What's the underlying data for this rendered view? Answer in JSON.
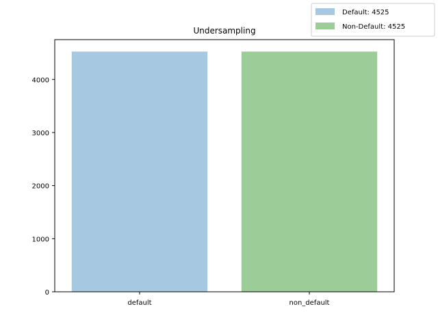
{
  "chart_data": {
    "type": "bar",
    "title": "Undersampling",
    "xlabel": "",
    "ylabel": "",
    "categories": [
      "default",
      "non_default"
    ],
    "values": [
      4525,
      4525
    ],
    "colors": [
      "#a6c8e0",
      "#9ccc98"
    ],
    "ylim": [
      0,
      4750
    ],
    "yticks": [
      0,
      1000,
      2000,
      3000,
      4000
    ],
    "grid": false,
    "legend": {
      "placement": "top-right outside axes",
      "entries": [
        {
          "label": "Default: 4525",
          "color": "#a6c8e0"
        },
        {
          "label": "Non-Default: 4525",
          "color": "#9ccc98"
        }
      ]
    }
  }
}
